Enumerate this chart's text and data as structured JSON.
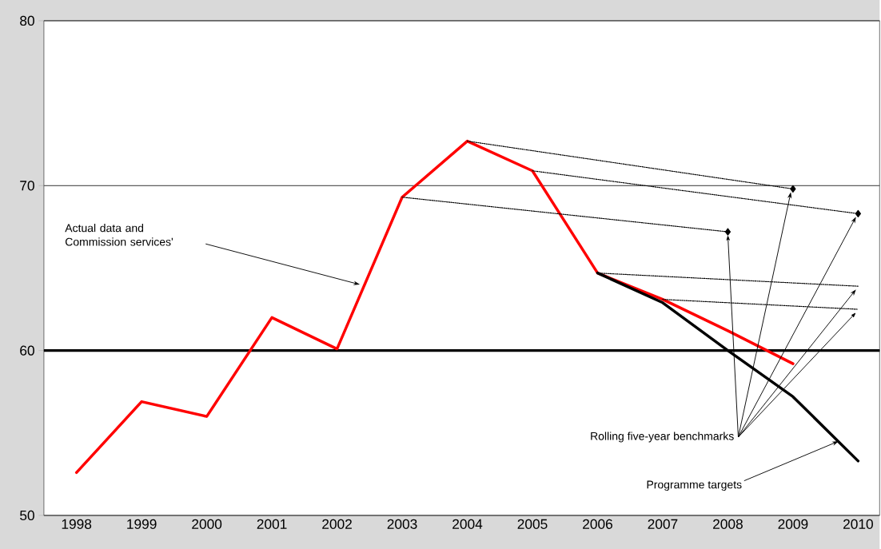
{
  "chart_data": {
    "type": "line",
    "series": [
      {
        "color": "#ff0000",
        "x": [
          1998,
          1999,
          2000,
          2001,
          2002,
          2003,
          2004,
          2005,
          2006,
          2007,
          2008,
          2009
        ],
        "values": [
          52.6,
          56.9,
          56.0,
          62.0,
          60.1,
          69.3,
          72.7,
          70.9,
          64.7,
          63.1,
          61.2,
          59.2
        ]
      },
      {
        "color": "#000000",
        "x": [
          2006,
          2007,
          2008,
          2009,
          2010
        ],
        "values": [
          64.7,
          62.9,
          60.0,
          57.2,
          53.3
        ]
      },
      {
        "color": "#000000",
        "line_style": "dotted",
        "marker": "diamond",
        "x": [
          2003,
          2008
        ],
        "values": [
          69.3,
          67.2
        ]
      },
      {
        "color": "#000000",
        "line_style": "dotted",
        "marker": "diamond",
        "x": [
          2004,
          2009
        ],
        "values": [
          72.7,
          69.8
        ]
      },
      {
        "color": "#000000",
        "line_style": "dotted",
        "marker": "diamond",
        "x": [
          2005,
          2010
        ],
        "values": [
          70.9,
          68.3
        ]
      },
      {
        "color": "#000000",
        "line_style": "dotted",
        "x": [
          2006,
          2010
        ],
        "values": [
          64.7,
          63.9
        ]
      },
      {
        "color": "#000000",
        "line_style": "dotted",
        "x": [
          2007,
          2010
        ],
        "values": [
          63.1,
          62.5
        ]
      }
    ],
    "xlim": [
      1997.5,
      2010.33
    ],
    "xticks": [
      1998,
      1999,
      2000,
      2001,
      2002,
      2003,
      2004,
      2005,
      2006,
      2007,
      2008,
      2009,
      2010
    ],
    "ylim": [
      50,
      80
    ],
    "yticks": [
      50,
      60,
      70,
      80
    ],
    "grid": "y",
    "marker": "none",
    "line_style": "solid",
    "ref_lines": [
      {
        "axis": "y",
        "value": 60,
        "color": "#000000"
      }
    ],
    "annotations": [
      "Actual data and Commission services'",
      {
        "text": "Rolling five-year benchmarks",
        "x": 2008,
        "y": 67.2
      },
      {
        "text": "Programme targets",
        "x": 2009.7,
        "y": 54.5
      }
    ]
  }
}
